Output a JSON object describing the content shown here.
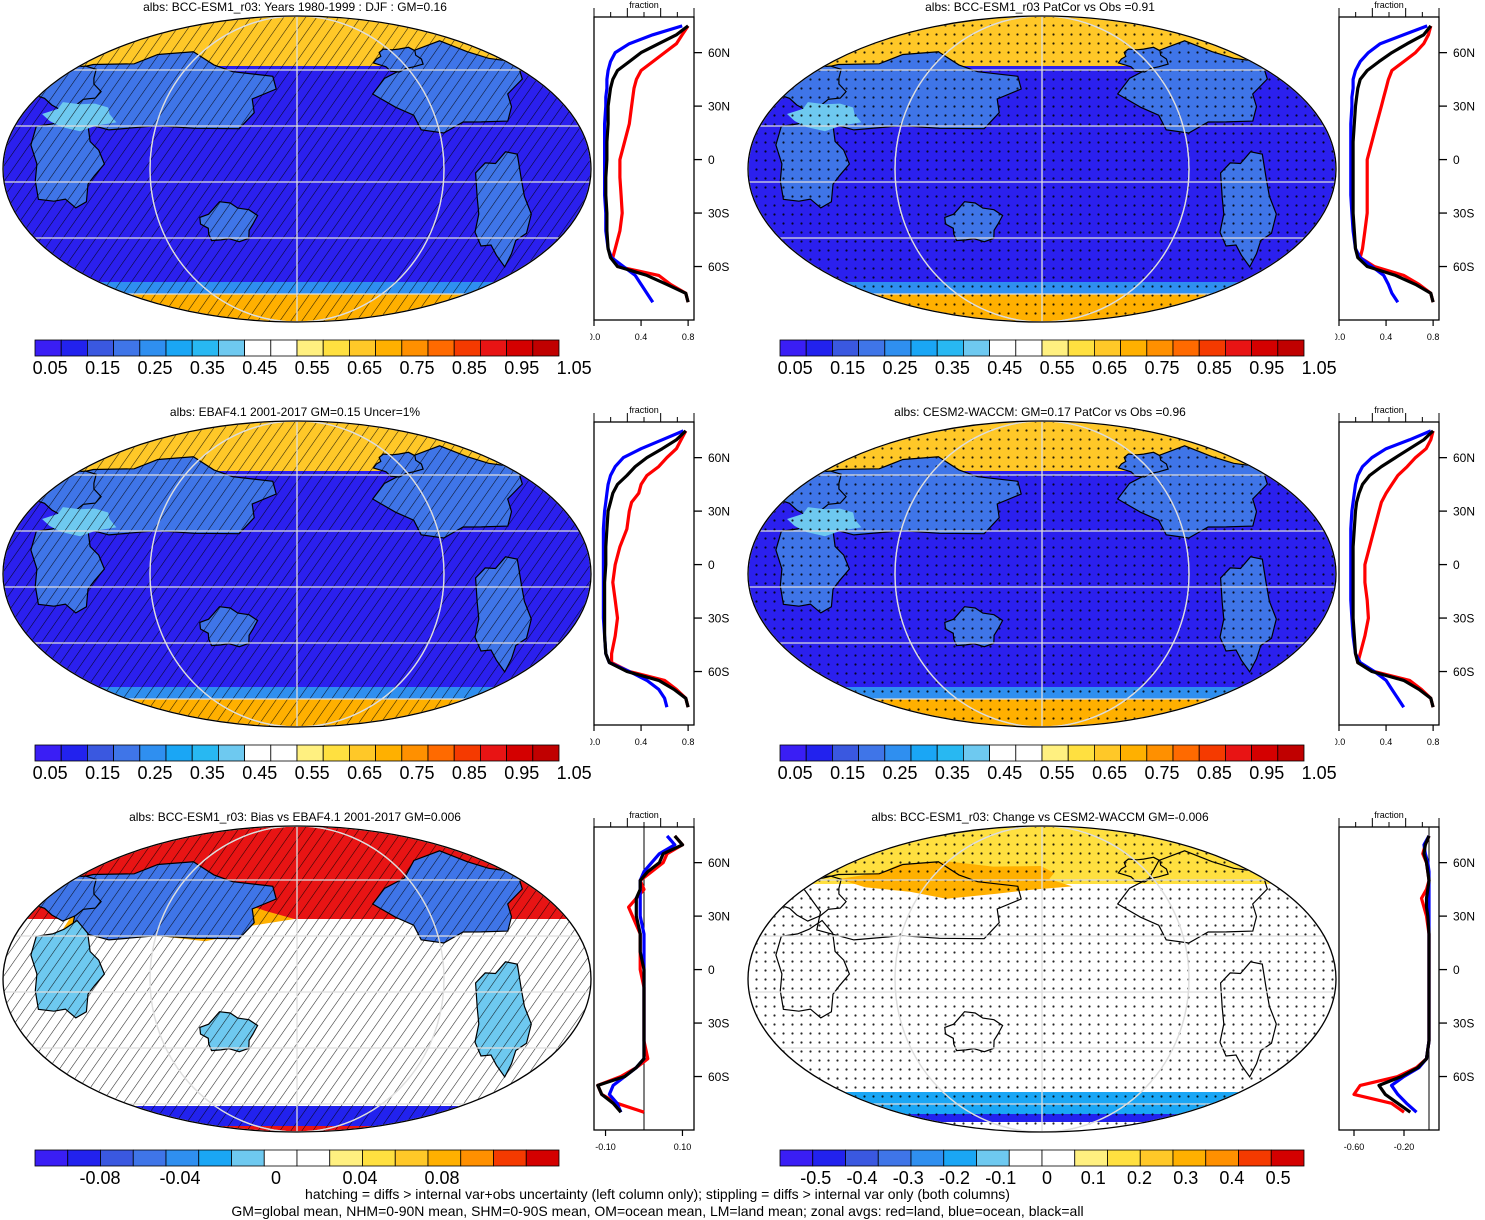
{
  "footer": {
    "line1": "hatching = diffs > internal var+obs uncertainty (left column only); stippling = diffs > internal var only (both columns)",
    "line2": "GM=global mean, NHM=0-90N mean, SHM=0-90S mean, OM=ocean mean, LM=land mean; zonal avgs: red=land, blue=ocean, black=all"
  },
  "colors": {
    "land": "#ff0000",
    "ocean": "#0000ff",
    "all": "#000000",
    "abs_scale": [
      "#3a1ef5",
      "#2222ee",
      "#3a58e0",
      "#3f75e8",
      "#2f8ff0",
      "#1aa6f5",
      "#28b8f2",
      "#6ec9f0",
      "#ffffff",
      "#ffffff",
      "#fff080",
      "#ffe040",
      "#ffc828",
      "#ffb000",
      "#ff9000",
      "#ff6a00",
      "#f53a00",
      "#e81414",
      "#d40000",
      "#c00000"
    ],
    "diff_scale": [
      "#3a1ef5",
      "#2222ee",
      "#3a58e0",
      "#3f75e8",
      "#2f8ff0",
      "#1aa6f5",
      "#6ec9f0",
      "#ffffff",
      "#ffffff",
      "#fff080",
      "#ffe040",
      "#ffc828",
      "#ffb000",
      "#ff9000",
      "#f53a00",
      "#d40000"
    ]
  },
  "panels": [
    {
      "title": "albs: BCC-ESM1_r03: Years 1980-1999 : DJF : GM=0.16",
      "kind": "abs",
      "pattern": "hatch",
      "colorbar_labels": [
        "0.05",
        "0.15",
        "0.25",
        "0.35",
        "0.45",
        "0.55",
        "0.65",
        "0.75",
        "0.85",
        "0.95",
        "1.05"
      ],
      "chart_data": {
        "type": "line",
        "title": "fraction",
        "lat_ticks": [
          "60N",
          "30N",
          "0",
          "30S",
          "60S"
        ],
        "x_ticks": [
          "0.0",
          "0.4",
          "0.8"
        ],
        "xlim": [
          0.0,
          0.85
        ],
        "ylim": [
          -90,
          80
        ],
        "lat": [
          75,
          70,
          65,
          60,
          55,
          50,
          45,
          40,
          35,
          30,
          20,
          10,
          0,
          -10,
          -20,
          -30,
          -40,
          -50,
          -55,
          -60,
          -65,
          -70,
          -75,
          -80
        ],
        "series": [
          {
            "name": "land",
            "values": [
              0.8,
              0.75,
              0.7,
              0.6,
              0.5,
              0.4,
              0.36,
              0.34,
              0.33,
              0.32,
              0.3,
              0.26,
              0.22,
              0.22,
              0.23,
              0.24,
              0.22,
              0.18,
              0.16,
              0.2,
              0.55,
              0.65,
              0.78,
              0.8
            ]
          },
          {
            "name": "ocean",
            "values": [
              0.75,
              0.5,
              0.3,
              0.18,
              0.14,
              0.12,
              0.11,
              0.11,
              0.1,
              0.1,
              0.09,
              0.09,
              0.09,
              0.09,
              0.09,
              0.1,
              0.1,
              0.12,
              0.15,
              0.25,
              0.35,
              0.4,
              0.45,
              0.5
            ]
          },
          {
            "name": "all",
            "values": [
              0.8,
              0.7,
              0.55,
              0.4,
              0.3,
              0.2,
              0.16,
              0.14,
              0.13,
              0.12,
              0.12,
              0.11,
              0.11,
              0.1,
              0.1,
              0.11,
              0.11,
              0.12,
              0.14,
              0.2,
              0.45,
              0.62,
              0.78,
              0.8
            ]
          }
        ]
      }
    },
    {
      "title": "albs: BCC-ESM1_r03 PatCor vs Obs =0.91",
      "kind": "abs",
      "pattern": "stipple",
      "colorbar_labels": [
        "0.05",
        "0.15",
        "0.25",
        "0.35",
        "0.45",
        "0.55",
        "0.65",
        "0.75",
        "0.85",
        "0.95",
        "1.05"
      ],
      "chart_data": {
        "type": "line",
        "title": "fraction",
        "lat_ticks": [
          "60N",
          "30N",
          "0",
          "30S",
          "60S"
        ],
        "x_ticks": [
          "0.0",
          "0.4",
          "0.8"
        ],
        "xlim": [
          0.0,
          0.85
        ],
        "ylim": [
          -90,
          80
        ],
        "lat": [
          75,
          70,
          65,
          60,
          55,
          50,
          45,
          40,
          35,
          30,
          20,
          10,
          0,
          -10,
          -20,
          -30,
          -40,
          -50,
          -55,
          -60,
          -65,
          -70,
          -75,
          -80
        ],
        "series": [
          {
            "name": "land",
            "values": [
              0.78,
              0.76,
              0.72,
              0.65,
              0.55,
              0.45,
              0.42,
              0.4,
              0.38,
              0.36,
              0.32,
              0.28,
              0.24,
              0.24,
              0.24,
              0.24,
              0.22,
              0.2,
              0.18,
              0.3,
              0.55,
              0.68,
              0.78,
              0.8
            ]
          },
          {
            "name": "ocean",
            "values": [
              0.75,
              0.55,
              0.35,
              0.25,
              0.18,
              0.14,
              0.12,
              0.12,
              0.11,
              0.11,
              0.1,
              0.1,
              0.1,
              0.1,
              0.1,
              0.11,
              0.12,
              0.14,
              0.18,
              0.28,
              0.38,
              0.42,
              0.45,
              0.5
            ]
          },
          {
            "name": "all",
            "values": [
              0.78,
              0.72,
              0.58,
              0.45,
              0.34,
              0.24,
              0.18,
              0.16,
              0.15,
              0.14,
              0.13,
              0.12,
              0.12,
              0.12,
              0.12,
              0.12,
              0.13,
              0.14,
              0.16,
              0.24,
              0.48,
              0.65,
              0.78,
              0.8
            ]
          }
        ]
      }
    },
    {
      "title": "albs: EBAF4.1 2001-2017 GM=0.15 Uncer=1%",
      "kind": "abs",
      "pattern": "hatch",
      "colorbar_labels": [
        "0.05",
        "0.15",
        "0.25",
        "0.35",
        "0.45",
        "0.55",
        "0.65",
        "0.75",
        "0.85",
        "0.95",
        "1.05"
      ],
      "chart_data": {
        "type": "line",
        "title": "fraction",
        "lat_ticks": [
          "60N",
          "30N",
          "0",
          "30S",
          "60S"
        ],
        "x_ticks": [
          "0.0",
          "0.4",
          "0.8"
        ],
        "xlim": [
          0.0,
          0.85
        ],
        "ylim": [
          -90,
          80
        ],
        "lat": [
          75,
          70,
          65,
          60,
          55,
          50,
          45,
          40,
          35,
          30,
          20,
          10,
          0,
          -10,
          -20,
          -30,
          -40,
          -50,
          -55,
          -60,
          -65,
          -70,
          -75,
          -80
        ],
        "series": [
          {
            "name": "land",
            "values": [
              0.78,
              0.74,
              0.7,
              0.62,
              0.55,
              0.45,
              0.4,
              0.38,
              0.32,
              0.3,
              0.28,
              0.22,
              0.18,
              0.16,
              0.18,
              0.2,
              0.18,
              0.15,
              0.15,
              0.3,
              0.6,
              0.7,
              0.78,
              0.8
            ]
          },
          {
            "name": "ocean",
            "values": [
              0.76,
              0.58,
              0.4,
              0.25,
              0.18,
              0.14,
              0.12,
              0.11,
              0.1,
              0.09,
              0.08,
              0.08,
              0.08,
              0.08,
              0.08,
              0.08,
              0.09,
              0.1,
              0.13,
              0.3,
              0.45,
              0.55,
              0.6,
              0.62
            ]
          },
          {
            "name": "all",
            "values": [
              0.78,
              0.7,
              0.58,
              0.45,
              0.35,
              0.28,
              0.2,
              0.16,
              0.14,
              0.12,
              0.11,
              0.1,
              0.1,
              0.09,
              0.09,
              0.09,
              0.09,
              0.1,
              0.13,
              0.28,
              0.55,
              0.68,
              0.78,
              0.8
            ]
          }
        ]
      }
    },
    {
      "title": "albs: CESM2-WACCM: GM=0.17 PatCor vs Obs =0.96",
      "kind": "abs",
      "pattern": "stipple",
      "colorbar_labels": [
        "0.05",
        "0.15",
        "0.25",
        "0.35",
        "0.45",
        "0.55",
        "0.65",
        "0.75",
        "0.85",
        "0.95",
        "1.05"
      ],
      "chart_data": {
        "type": "line",
        "title": "fraction",
        "lat_ticks": [
          "60N",
          "30N",
          "0",
          "30S",
          "60S"
        ],
        "x_ticks": [
          "0.0",
          "0.4",
          "0.8"
        ],
        "xlim": [
          0.0,
          0.85
        ],
        "ylim": [
          -90,
          80
        ],
        "lat": [
          75,
          70,
          65,
          60,
          55,
          50,
          45,
          40,
          35,
          30,
          20,
          10,
          0,
          -10,
          -20,
          -30,
          -40,
          -50,
          -55,
          -60,
          -65,
          -70,
          -75,
          -80
        ],
        "series": [
          {
            "name": "land",
            "values": [
              0.8,
              0.78,
              0.74,
              0.65,
              0.58,
              0.5,
              0.45,
              0.4,
              0.36,
              0.34,
              0.3,
              0.26,
              0.22,
              0.22,
              0.24,
              0.25,
              0.22,
              0.18,
              0.16,
              0.3,
              0.6,
              0.7,
              0.78,
              0.8
            ]
          },
          {
            "name": "ocean",
            "values": [
              0.78,
              0.6,
              0.4,
              0.28,
              0.2,
              0.16,
              0.14,
              0.13,
              0.12,
              0.11,
              0.1,
              0.1,
              0.1,
              0.1,
              0.1,
              0.11,
              0.12,
              0.14,
              0.18,
              0.3,
              0.4,
              0.45,
              0.5,
              0.55
            ]
          },
          {
            "name": "all",
            "values": [
              0.8,
              0.72,
              0.6,
              0.48,
              0.36,
              0.26,
              0.2,
              0.17,
              0.15,
              0.14,
              0.13,
              0.12,
              0.12,
              0.12,
              0.12,
              0.12,
              0.13,
              0.14,
              0.16,
              0.28,
              0.55,
              0.68,
              0.78,
              0.8
            ]
          }
        ]
      }
    },
    {
      "title": "albs: BCC-ESM1_r03: Bias vs EBAF4.1 2001-2017 GM=0.006",
      "kind": "diff1",
      "pattern": "hatch",
      "colorbar_labels": [
        "-0.08",
        "-0.04",
        "0",
        "0.04",
        "0.08"
      ],
      "chart_data": {
        "type": "line",
        "title": "fraction",
        "lat_ticks": [
          "60N",
          "30N",
          "0",
          "30S",
          "60S"
        ],
        "x_ticks": [
          "-0.10",
          "0.10"
        ],
        "xlim": [
          -0.13,
          0.13
        ],
        "ylim": [
          -90,
          80
        ],
        "lat": [
          75,
          70,
          65,
          60,
          55,
          50,
          45,
          40,
          35,
          30,
          20,
          10,
          0,
          -10,
          -20,
          -30,
          -40,
          -50,
          -55,
          -60,
          -65,
          -70,
          -75,
          -80
        ],
        "series": [
          {
            "name": "land",
            "values": [
              0.08,
              0.1,
              0.06,
              0.05,
              0.02,
              -0.01,
              0.0,
              -0.02,
              -0.04,
              -0.03,
              -0.01,
              -0.01,
              -0.01,
              0.0,
              0.0,
              0.0,
              0.0,
              0.01,
              -0.02,
              -0.06,
              -0.12,
              -0.11,
              -0.07,
              0.0
            ]
          },
          {
            "name": "ocean",
            "values": [
              0.06,
              0.08,
              0.04,
              0.02,
              0.0,
              -0.01,
              -0.01,
              -0.01,
              -0.01,
              -0.01,
              0.0,
              0.0,
              0.0,
              0.0,
              0.0,
              0.0,
              0.0,
              0.0,
              -0.02,
              -0.05,
              -0.08,
              -0.09,
              -0.07,
              -0.06
            ]
          },
          {
            "name": "all",
            "values": [
              0.08,
              0.1,
              0.05,
              0.04,
              0.01,
              -0.01,
              -0.01,
              -0.02,
              -0.02,
              -0.02,
              -0.01,
              -0.01,
              0.0,
              0.0,
              0.0,
              0.0,
              0.0,
              0.0,
              -0.02,
              -0.05,
              -0.12,
              -0.11,
              -0.08,
              -0.06
            ]
          }
        ]
      }
    },
    {
      "title": "albs: BCC-ESM1_r03: Change vs CESM2-WACCM GM=-0.006",
      "kind": "diff2",
      "pattern": "stipple",
      "colorbar_labels": [
        "-0.5",
        "-0.4",
        "-0.3",
        "-0.2",
        "-0.1",
        "0",
        "0.1",
        "0.2",
        "0.3",
        "0.4",
        "0.5"
      ],
      "chart_data": {
        "type": "line",
        "title": "fraction",
        "lat_ticks": [
          "60N",
          "30N",
          "0",
          "30S",
          "60S"
        ],
        "x_ticks": [
          "-0.60",
          "-0.20"
        ],
        "xlim": [
          -0.72,
          0.08
        ],
        "ylim": [
          -90,
          80
        ],
        "lat": [
          75,
          70,
          65,
          60,
          55,
          50,
          45,
          40,
          35,
          30,
          20,
          10,
          0,
          -10,
          -20,
          -30,
          -40,
          -50,
          -55,
          -60,
          -65,
          -70,
          -75,
          -80
        ],
        "series": [
          {
            "name": "land",
            "values": [
              0.0,
              -0.03,
              -0.05,
              -0.02,
              -0.01,
              0.0,
              -0.02,
              -0.06,
              -0.04,
              -0.02,
              0.0,
              0.0,
              0.0,
              0.0,
              0.0,
              0.0,
              0.0,
              -0.02,
              -0.1,
              -0.25,
              -0.55,
              -0.6,
              -0.3,
              -0.2
            ]
          },
          {
            "name": "ocean",
            "values": [
              0.0,
              -0.04,
              -0.03,
              -0.01,
              0.0,
              0.0,
              0.0,
              0.0,
              0.0,
              0.0,
              0.0,
              0.0,
              0.0,
              0.0,
              0.0,
              0.0,
              0.0,
              -0.02,
              -0.08,
              -0.2,
              -0.3,
              -0.25,
              -0.18,
              -0.1
            ]
          },
          {
            "name": "all",
            "values": [
              0.0,
              -0.03,
              -0.04,
              -0.02,
              -0.01,
              0.0,
              -0.01,
              -0.02,
              -0.02,
              -0.01,
              0.0,
              0.0,
              0.0,
              0.0,
              0.0,
              0.0,
              0.0,
              -0.02,
              -0.09,
              -0.22,
              -0.4,
              -0.35,
              -0.25,
              -0.15
            ]
          }
        ]
      }
    }
  ]
}
